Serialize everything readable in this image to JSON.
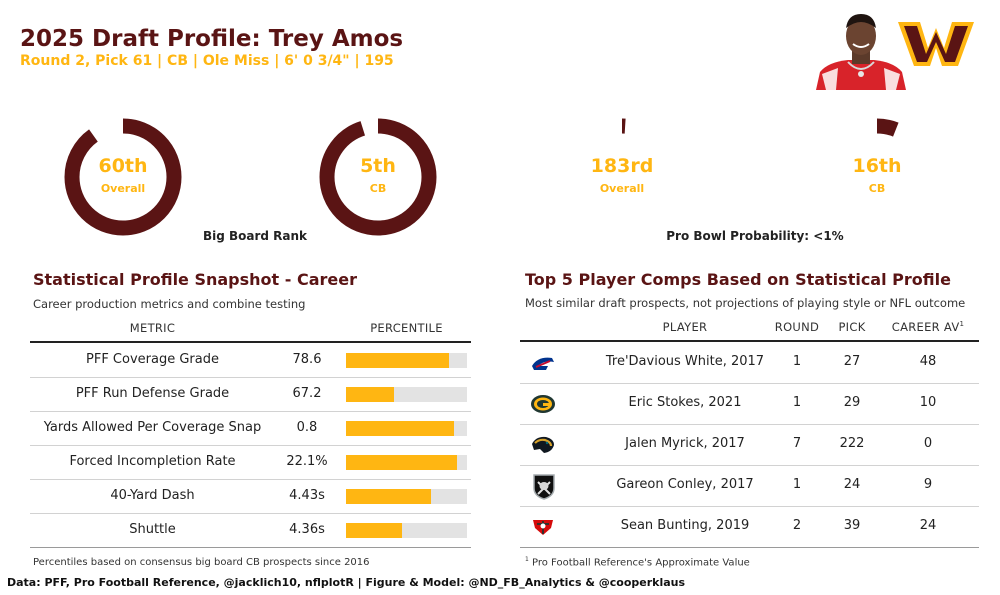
{
  "header": {
    "title": "2025 Draft Profile: Trey Amos",
    "subtitle": "Round 2, Pick 61 | CB | Ole Miss | 6' 0 3/4\" | 195"
  },
  "colors": {
    "maroon": "#5a1414",
    "gold": "#ffb612",
    "track": "#e3e3e3"
  },
  "rings": {
    "big_board": {
      "overall": {
        "value": "60th",
        "label": "Overall",
        "fill": 0.9
      },
      "position": {
        "value": "5th",
        "label": "CB",
        "fill": 0.95
      },
      "caption": "Big Board Rank"
    },
    "pro_bowl": {
      "overall": {
        "value": "183rd",
        "label": "Overall",
        "fill": 0.01
      },
      "position": {
        "value": "16th",
        "label": "CB",
        "fill": 0.06
      },
      "caption": "Pro Bowl Probability: <1%"
    }
  },
  "stats": {
    "title": "Statistical Profile Snapshot - Career",
    "subtitle": "Career production metrics and combine testing",
    "col_metric": "METRIC",
    "col_percentile": "PERCENTILE",
    "rows": [
      {
        "metric": "PFF Coverage Grade",
        "value": "78.6",
        "percentile": 0.85
      },
      {
        "metric": "PFF Run Defense Grade",
        "value": "67.2",
        "percentile": 0.4
      },
      {
        "metric": "Yards Allowed Per Coverage Snap",
        "value": "0.8",
        "percentile": 0.89
      },
      {
        "metric": "Forced Incompletion Rate",
        "value": "22.1%",
        "percentile": 0.92
      },
      {
        "metric": "40-Yard Dash",
        "value": "4.43s",
        "percentile": 0.7
      },
      {
        "metric": "Shuttle",
        "value": "4.36s",
        "percentile": 0.46
      }
    ],
    "footnote": "Percentiles based on consensus big board CB prospects since 2016"
  },
  "comps": {
    "title": "Top 5 Player Comps Based on Statistical Profile",
    "subtitle": "Most similar draft prospects, not projections of playing style or NFL outcome",
    "col_player": "PLAYER",
    "col_round": "ROUND",
    "col_pick": "PICK",
    "col_av": "CAREER AV",
    "col_av_mark": "1",
    "rows": [
      {
        "logo_icon": "bills-logo-icon",
        "player": "Tre'Davious White, 2017",
        "round": "1",
        "pick": "27",
        "av": "48"
      },
      {
        "logo_icon": "packers-logo-icon",
        "player": "Eric Stokes, 2021",
        "round": "1",
        "pick": "29",
        "av": "10"
      },
      {
        "logo_icon": "jaguars-logo-icon",
        "player": "Jalen Myrick, 2017",
        "round": "7",
        "pick": "222",
        "av": "0"
      },
      {
        "logo_icon": "raiders-logo-icon",
        "player": "Gareon Conley, 2017",
        "round": "1",
        "pick": "24",
        "av": "9"
      },
      {
        "logo_icon": "buccaneers-logo-icon",
        "player": "Sean Bunting, 2019",
        "round": "2",
        "pick": "39",
        "av": "24"
      }
    ],
    "footnote_mark": "1",
    "footnote": "Pro Football Reference's Approximate Value"
  },
  "credit": "Data: PFF, Pro Football Reference, @jacklich10, nflplotR | Figure & Model: @ND_FB_Analytics & @cooperklaus"
}
